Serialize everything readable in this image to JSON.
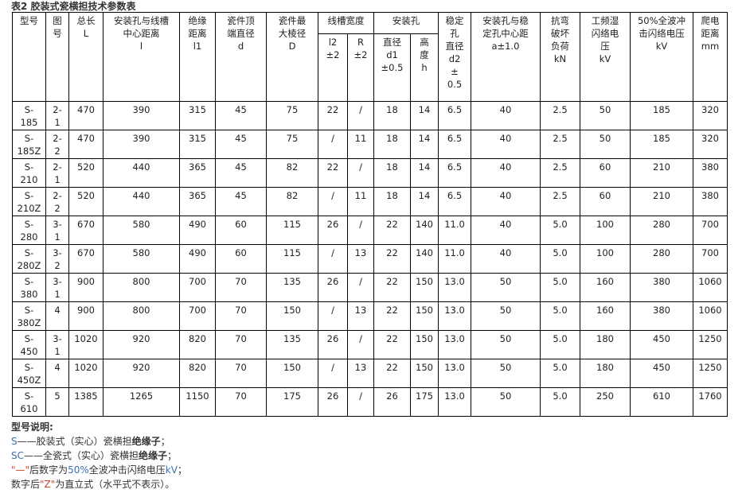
{
  "title": "表2 胶装式瓷横担技术参数表",
  "header": {
    "model": "型号",
    "fig": "图\n号",
    "L": "总长\nL",
    "l": "安装孔与线槽\n中心距离\nl",
    "l1": "绝缘\n距离\nl1",
    "d": "瓷件顶\n端直径\nd",
    "D": "瓷件最\n大棱径\nD",
    "groove": "线槽宽度",
    "l2": "l2\n±2",
    "R": "R\n±2",
    "hole": "安装孔",
    "d1": "直径\nd1\n±0.5",
    "h": "高\n度\nh",
    "d2": "稳定\n孔\n直径\nd2\n±\n0.5",
    "a": "安装孔与稳\n定孔中心距\na±1.0",
    "kN": "抗弯\n破坏\n负荷\nkN",
    "wet": "工频湿\n闪络电\n压\nkV",
    "imp": "50%全波冲\n击闪络电压\nkV",
    "creep": "爬电\n距离\nmm"
  },
  "rows": [
    [
      "S-\n185",
      "2-\n1",
      "470",
      "390",
      "315",
      "45",
      "75",
      "22",
      "/",
      "18",
      "14",
      "6.5",
      "40",
      "2.5",
      "50",
      "185",
      "320"
    ],
    [
      "S-\n185Z",
      "2-\n2",
      "470",
      "390",
      "315",
      "45",
      "75",
      "/",
      "11",
      "18",
      "14",
      "6.5",
      "40",
      "2.5",
      "50",
      "185",
      "320"
    ],
    [
      "S-\n210",
      "2-\n1",
      "520",
      "440",
      "365",
      "45",
      "82",
      "22",
      "/",
      "18",
      "14",
      "6.5",
      "40",
      "2.5",
      "60",
      "210",
      "380"
    ],
    [
      "S-\n210Z",
      "2-\n2",
      "520",
      "440",
      "365",
      "45",
      "82",
      "/",
      "11",
      "18",
      "14",
      "6.5",
      "40",
      "2.5",
      "60",
      "210",
      "380"
    ],
    [
      "S-\n280",
      "3-\n1",
      "670",
      "580",
      "490",
      "60",
      "115",
      "26",
      "/",
      "22",
      "140",
      "11.0",
      "40",
      "5.0",
      "100",
      "280",
      "700"
    ],
    [
      "S-\n280Z",
      "3-\n2",
      "670",
      "580",
      "490",
      "60",
      "115",
      "/",
      "13",
      "22",
      "140",
      "11.0",
      "40",
      "5.0",
      "100",
      "280",
      "700"
    ],
    [
      "S-\n380",
      "3-\n1",
      "900",
      "800",
      "700",
      "70",
      "135",
      "26",
      "/",
      "22",
      "150",
      "13.0",
      "50",
      "5.0",
      "160",
      "380",
      "1060"
    ],
    [
      "S-\n380Z",
      "4",
      "900",
      "800",
      "700",
      "70",
      "150",
      "/",
      "13",
      "22",
      "150",
      "13.0",
      "50",
      "5.0",
      "160",
      "380",
      "1060"
    ],
    [
      "S-\n450",
      "3-\n1",
      "1020",
      "920",
      "820",
      "70",
      "135",
      "26",
      "/",
      "22",
      "150",
      "13.0",
      "50",
      "5.0",
      "180",
      "450",
      "1250"
    ],
    [
      "S-\n450Z",
      "4",
      "1020",
      "920",
      "820",
      "70",
      "150",
      "/",
      "13",
      "22",
      "150",
      "13.0",
      "50",
      "5.0",
      "180",
      "450",
      "1250"
    ],
    [
      "S-\n610",
      "5",
      "1385",
      "1265",
      "1150",
      "70",
      "175",
      "26",
      "/",
      "26",
      "175",
      "13.0",
      "50",
      "5.0",
      "250",
      "610",
      "1760"
    ]
  ],
  "notes": {
    "heading": "型号说明:",
    "s_code": "S",
    "s_text": "——胶装式（实心）瓷横担",
    "s_bold": "绝缘子",
    "s_end": "；",
    "sc_code": "SC",
    "sc_text": "——全瓷式（实心）瓷横担",
    "sc_bold": "绝缘子",
    "sc_end": "；",
    "dash": "\"—\"",
    "dash_text": "后数字为",
    "pct": "50%",
    "dash_text2": "全波冲击闪络电压",
    "kv": "kV",
    "dash_end": "；",
    "z_pre": "数字后",
    "z": "\"Z\"",
    "z_text": "为直立式（水平式不表示）。"
  }
}
